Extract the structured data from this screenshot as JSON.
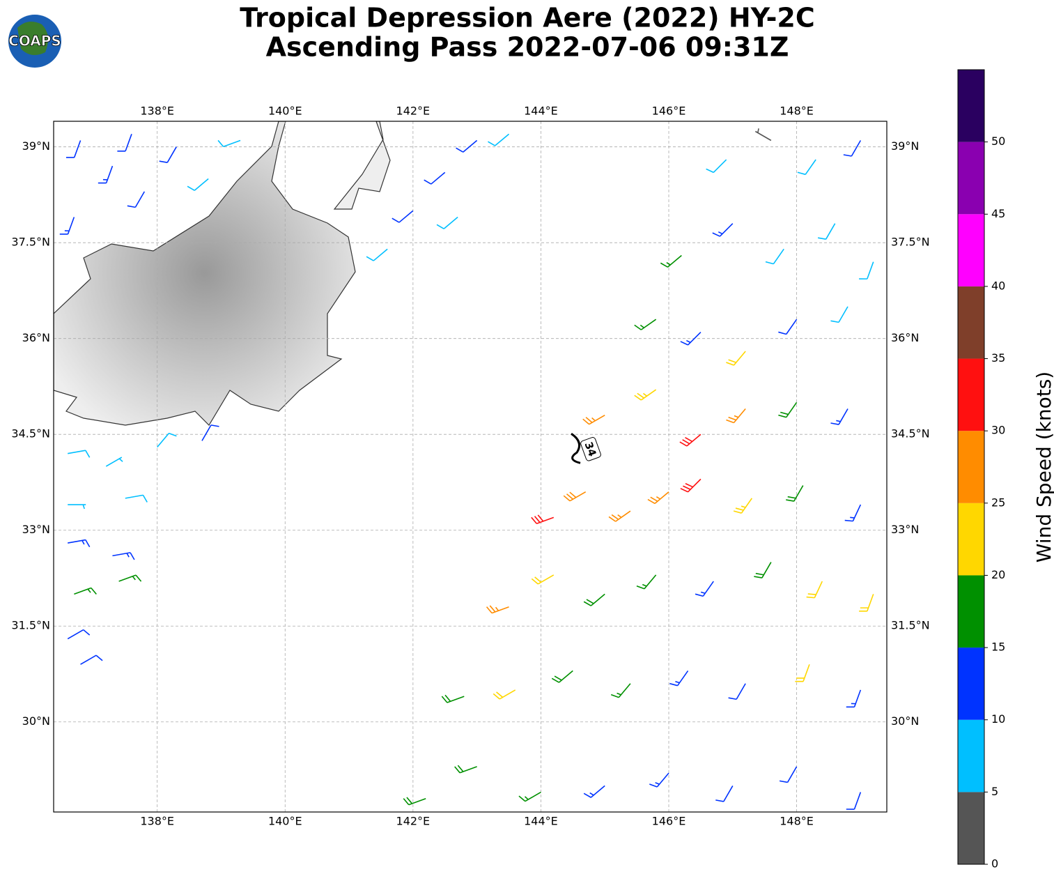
{
  "logo": "COAPS",
  "chart_data": {
    "type": "barb",
    "title": "Tropical Depression Aere (2022) HY-2C",
    "subtitle": "Ascending Pass 2022-07-06 09:31Z",
    "xlim": [
      136.38,
      149.41
    ],
    "ylim": [
      28.59,
      39.4
    ],
    "xticks": [
      {
        "value": 138,
        "label": "138°E"
      },
      {
        "value": 140,
        "label": "140°E"
      },
      {
        "value": 142,
        "label": "142°E"
      },
      {
        "value": 144,
        "label": "144°E"
      },
      {
        "value": 146,
        "label": "146°E"
      },
      {
        "value": 148,
        "label": "148°E"
      }
    ],
    "yticks": [
      {
        "value": 30,
        "label": "30°N"
      },
      {
        "value": 31.5,
        "label": "31.5°N"
      },
      {
        "value": 33,
        "label": "33°N"
      },
      {
        "value": 34.5,
        "label": "34.5°N"
      },
      {
        "value": 36,
        "label": "36°N"
      },
      {
        "value": 37.5,
        "label": "37.5°N"
      },
      {
        "value": 39,
        "label": "39°N"
      }
    ],
    "grid": true,
    "storm": {
      "label": 34,
      "lon": 144.78,
      "lat": 34.27
    },
    "colorbar": {
      "label": "Wind Speed (knots)",
      "bounds": [
        0,
        5,
        10,
        15,
        20,
        25,
        30,
        35,
        40,
        45,
        50,
        55
      ],
      "colors": [
        "#555555",
        "#00bfff",
        "#0033ff",
        "#009000",
        "#ffd700",
        "#ff8c00",
        "#ff1010",
        "#7f3f2a",
        "#ff00ff",
        "#8a00b0",
        "#2a0060"
      ],
      "ticks": [
        0,
        5,
        10,
        15,
        20,
        25,
        30,
        35,
        40,
        45,
        50
      ]
    },
    "barbs": {
      "lon": [
        136.8,
        137.3,
        137.8,
        138.3,
        138.8,
        139.3,
        136.7,
        137.6,
        141.6,
        142.0,
        142.5,
        143.0,
        142.7,
        143.5,
        136.6,
        137.2,
        138.0,
        138.7,
        136.6,
        137.5,
        136.6,
        137.3,
        136.7,
        137.4,
        136.6,
        136.8,
        142.2,
        143,
        144,
        145,
        146,
        147,
        148,
        149,
        142.8,
        143.6,
        144.5,
        145.4,
        146.3,
        147.2,
        148.2,
        149,
        143.5,
        144.2,
        145,
        145.8,
        146.7,
        147.6,
        148.4,
        149.2,
        144.2,
        144.7,
        145.4,
        146,
        146.5,
        147.3,
        148.1,
        149,
        145,
        145.8,
        146.5,
        147.2,
        148,
        148.8,
        145.8,
        146.5,
        147.2,
        148,
        148.8,
        146.2,
        147,
        147.8,
        148.6,
        149.2,
        146.9,
        147.6,
        148.3,
        149
      ],
      "lat": [
        39.1,
        38.7,
        38.3,
        39.0,
        38.5,
        39.1,
        37.9,
        39.2,
        37.4,
        38.0,
        38.6,
        39.1,
        37.9,
        39.2,
        34.2,
        34.0,
        34.3,
        34.4,
        33.4,
        33.5,
        32.8,
        32.6,
        32.0,
        32.2,
        31.3,
        30.9,
        28.8,
        29.3,
        28.9,
        29,
        29.2,
        29,
        29.3,
        28.9,
        30.4,
        30.5,
        30.8,
        30.6,
        30.8,
        30.6,
        30.9,
        30.5,
        31.8,
        32.3,
        32,
        32.3,
        32.2,
        32.5,
        32.2,
        32.0,
        33.2,
        33.6,
        33.3,
        33.6,
        33.8,
        33.5,
        33.7,
        33.4,
        34.8,
        35.2,
        34.5,
        34.9,
        35,
        34.9,
        36.3,
        36.1,
        35.8,
        36.3,
        36.5,
        37.3,
        37.8,
        37.4,
        37.8,
        37.2,
        38.8,
        39.1,
        38.8,
        39.1
      ],
      "speed": [
        12,
        13,
        12,
        11,
        9,
        8,
        13,
        12,
        8,
        12,
        11,
        10,
        9,
        8,
        8,
        7,
        8,
        12,
        7,
        8,
        13,
        13,
        17,
        17,
        12,
        11,
        18,
        18,
        16,
        13,
        13,
        11,
        11,
        12,
        18,
        22,
        18,
        17,
        13,
        11,
        21,
        13,
        27,
        22,
        18,
        17,
        13,
        19,
        22,
        21,
        31,
        28,
        26,
        27,
        31,
        24,
        18,
        13,
        27,
        23,
        31,
        26,
        18,
        13,
        17,
        13,
        22,
        12,
        8,
        17,
        13,
        8,
        8,
        8,
        8,
        4,
        8,
        12
      ],
      "direction": [
        200,
        200,
        210,
        210,
        230,
        250,
        200,
        200,
        230,
        230,
        230,
        230,
        230,
        230,
        80,
        60,
        40,
        30,
        90,
        80,
        80,
        80,
        70,
        70,
        60,
        60,
        250,
        250,
        240,
        230,
        220,
        210,
        210,
        200,
        250,
        240,
        230,
        220,
        215,
        210,
        200,
        200,
        250,
        240,
        230,
        220,
        215,
        210,
        205,
        200,
        250,
        240,
        235,
        230,
        225,
        215,
        210,
        205,
        240,
        235,
        230,
        220,
        215,
        210,
        235,
        225,
        220,
        215,
        210,
        230,
        225,
        215,
        210,
        200,
        225,
        300,
        215,
        210
      ]
    }
  }
}
